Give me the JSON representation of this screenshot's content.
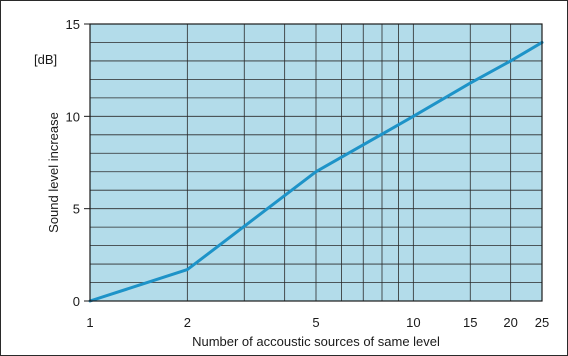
{
  "chart_data": {
    "type": "line",
    "xlabel": "Number of accoustic sources of same level",
    "ylabel": "Sound level increase",
    "unit_label": "[dB]",
    "x_scale": "log",
    "xlim": [
      1,
      25
    ],
    "ylim": [
      0,
      15
    ],
    "x_ticks": [
      {
        "value": 1,
        "label": "1"
      },
      {
        "value": 2,
        "label": "2"
      },
      {
        "value": 5,
        "label": "5"
      },
      {
        "value": 10,
        "label": "10"
      },
      {
        "value": 15,
        "label": "15"
      },
      {
        "value": 20,
        "label": "20"
      },
      {
        "value": 25,
        "label": "25"
      }
    ],
    "y_ticks": [
      {
        "value": 0,
        "label": "0"
      },
      {
        "value": 5,
        "label": "5"
      },
      {
        "value": 10,
        "label": "10"
      },
      {
        "value": 15,
        "label": "15"
      }
    ],
    "x_grid": [
      2,
      3,
      4,
      5,
      6,
      7,
      8,
      9,
      10,
      15,
      20
    ],
    "y_grid_step": 1,
    "grid": true,
    "series": [
      {
        "x": [
          1,
          2,
          5,
          10,
          15,
          20,
          25
        ],
        "y": [
          0,
          1.7,
          7.0,
          10.0,
          11.8,
          13.0,
          14.0
        ]
      }
    ],
    "colors": {
      "plot_background": "#b3dcea",
      "grid": "#2a2a2a",
      "line": "#1d93c8",
      "axis": "#1a1a1a"
    }
  }
}
